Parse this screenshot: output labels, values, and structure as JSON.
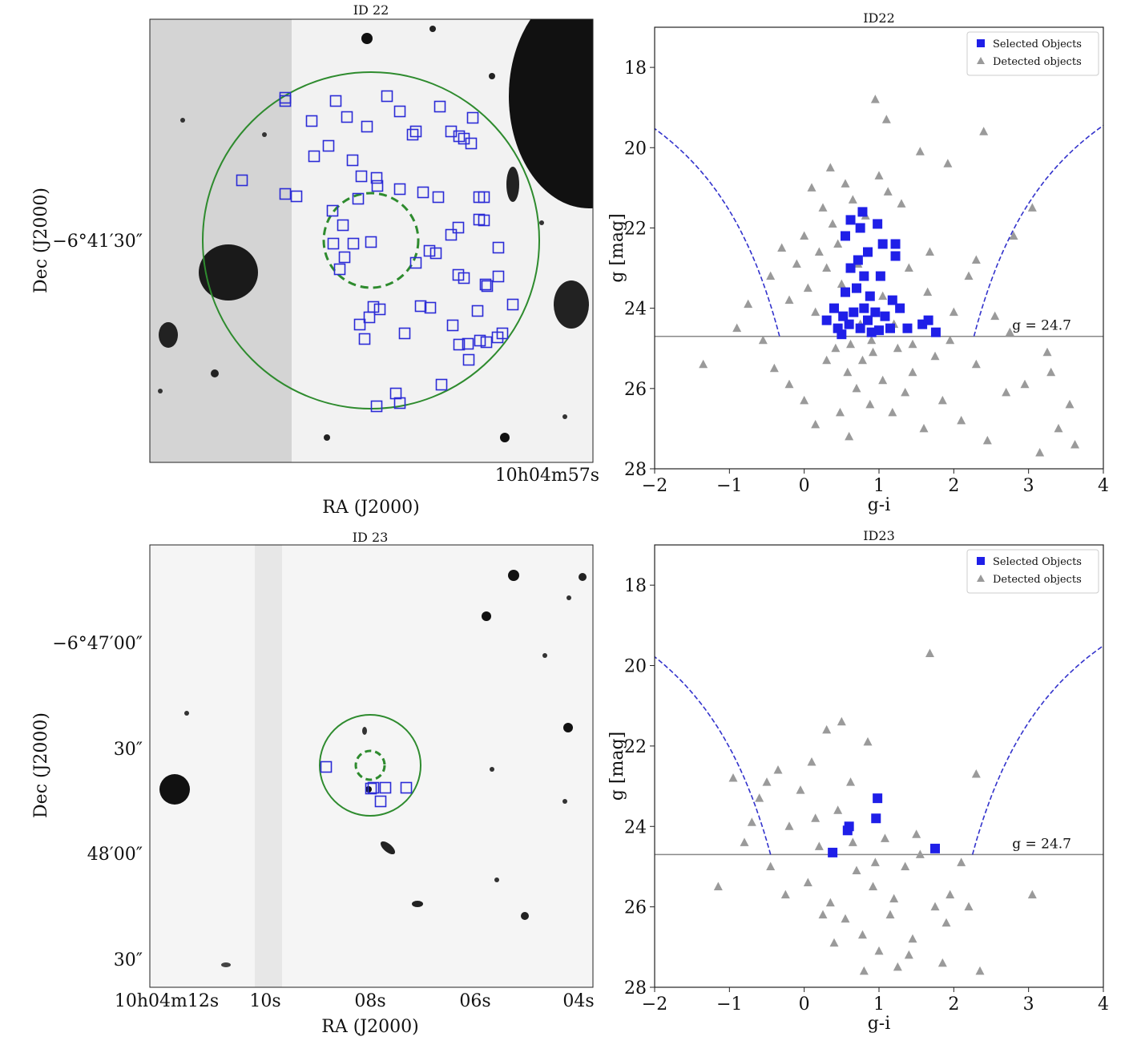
{
  "colors": {
    "selected": "#1f1fe8",
    "detected": "#9a9a9a",
    "ring": "#2e8b2e",
    "box": "#2b2bd6",
    "axis": "#222222",
    "cut": "#888888",
    "curve": "#3333cc"
  },
  "images": [
    {
      "title": "ID 22",
      "xlabel": "RA (J2000)",
      "ylabel": "Dec (J2000)",
      "x_ticklabels": [
        "10h04m57s"
      ],
      "y_ticklabels": [
        "−6°41′30″"
      ],
      "background": "#f2f2f2",
      "mask_shade": "#d4d4d4"
    },
    {
      "title": "ID 23",
      "xlabel": "RA (J2000)",
      "ylabel": "Dec (J2000)",
      "x_ticklabels": [
        "10h04m12s",
        "10s",
        "08s",
        "06s",
        "04s"
      ],
      "y_ticklabels": [
        "−6°47′00″",
        "30″",
        "48′00″",
        "30″"
      ],
      "background": "#f5f5f5",
      "mask_shade": "#e7e7e7"
    }
  ],
  "chart_data": [
    {
      "type": "scatter",
      "title": "ID22",
      "xlabel": "g-i",
      "ylabel": "g [mag]",
      "xlim": [
        -2,
        4
      ],
      "ylim": [
        28,
        17
      ],
      "xticks": [
        -2,
        -1,
        0,
        1,
        2,
        3,
        4
      ],
      "yticks": [
        18,
        20,
        22,
        24,
        26,
        28
      ],
      "legend": [
        "Selected Objects",
        "Detected objects"
      ],
      "legend_position": "top-right",
      "cut_label": "g = 24.7",
      "mag_cut": 24.7,
      "curve_center": 0.97,
      "curve_halfwidth_at_cut": 1.3,
      "series": [
        {
          "name": "Selected Objects",
          "marker": "square",
          "points": [
            [
              0.62,
              21.8
            ],
            [
              0.78,
              21.6
            ],
            [
              0.98,
              21.9
            ],
            [
              0.55,
              22.2
            ],
            [
              0.75,
              22.0
            ],
            [
              1.05,
              22.4
            ],
            [
              1.22,
              22.4
            ],
            [
              1.22,
              22.7
            ],
            [
              0.85,
              22.6
            ],
            [
              0.72,
              22.8
            ],
            [
              0.62,
              23.0
            ],
            [
              0.8,
              23.2
            ],
            [
              1.02,
              23.2
            ],
            [
              0.55,
              23.6
            ],
            [
              0.7,
              23.5
            ],
            [
              0.88,
              23.7
            ],
            [
              1.18,
              23.8
            ],
            [
              0.4,
              24.0
            ],
            [
              0.52,
              24.2
            ],
            [
              0.66,
              24.1
            ],
            [
              0.8,
              24.0
            ],
            [
              0.95,
              24.1
            ],
            [
              1.08,
              24.2
            ],
            [
              1.28,
              24.0
            ],
            [
              0.3,
              24.3
            ],
            [
              0.45,
              24.5
            ],
            [
              0.6,
              24.4
            ],
            [
              0.75,
              24.5
            ],
            [
              0.9,
              24.6
            ],
            [
              1.15,
              24.5
            ],
            [
              1.38,
              24.5
            ],
            [
              1.58,
              24.4
            ],
            [
              1.66,
              24.3
            ],
            [
              1.76,
              24.6
            ],
            [
              0.5,
              24.65
            ],
            [
              0.85,
              24.3
            ],
            [
              1.0,
              24.55
            ]
          ]
        },
        {
          "name": "Detected objects",
          "marker": "triangle",
          "points": [
            [
              -1.35,
              25.4
            ],
            [
              -0.75,
              23.9
            ],
            [
              -0.45,
              23.2
            ],
            [
              -0.3,
              22.5
            ],
            [
              -0.2,
              23.8
            ],
            [
              -0.1,
              22.9
            ],
            [
              0.0,
              22.2
            ],
            [
              0.05,
              23.5
            ],
            [
              0.1,
              21.0
            ],
            [
              0.15,
              24.1
            ],
            [
              0.2,
              22.6
            ],
            [
              0.25,
              21.5
            ],
            [
              0.3,
              23.0
            ],
            [
              0.35,
              20.5
            ],
            [
              0.38,
              21.9
            ],
            [
              0.42,
              25.0
            ],
            [
              0.45,
              22.4
            ],
            [
              0.5,
              23.4
            ],
            [
              0.55,
              20.9
            ],
            [
              0.58,
              25.6
            ],
            [
              0.62,
              24.9
            ],
            [
              0.65,
              21.3
            ],
            [
              0.7,
              26.0
            ],
            [
              0.72,
              22.9
            ],
            [
              0.78,
              25.3
            ],
            [
              0.82,
              21.7
            ],
            [
              0.88,
              26.4
            ],
            [
              0.92,
              25.1
            ],
            [
              0.95,
              18.8
            ],
            [
              1.0,
              20.7
            ],
            [
              1.05,
              25.8
            ],
            [
              1.1,
              19.3
            ],
            [
              1.12,
              21.1
            ],
            [
              1.18,
              26.6
            ],
            [
              1.25,
              25.0
            ],
            [
              1.3,
              21.4
            ],
            [
              1.35,
              26.1
            ],
            [
              1.4,
              23.0
            ],
            [
              1.45,
              25.6
            ],
            [
              1.55,
              20.1
            ],
            [
              1.6,
              27.0
            ],
            [
              1.68,
              22.6
            ],
            [
              1.75,
              25.2
            ],
            [
              1.85,
              26.3
            ],
            [
              1.92,
              20.4
            ],
            [
              2.0,
              24.1
            ],
            [
              2.1,
              26.8
            ],
            [
              2.2,
              23.2
            ],
            [
              2.3,
              25.4
            ],
            [
              2.45,
              27.3
            ],
            [
              2.55,
              24.2
            ],
            [
              2.7,
              26.1
            ],
            [
              2.8,
              22.2
            ],
            [
              2.95,
              25.9
            ],
            [
              3.05,
              21.5
            ],
            [
              3.15,
              27.6
            ],
            [
              3.25,
              25.1
            ],
            [
              3.4,
              27.0
            ],
            [
              3.55,
              26.4
            ],
            [
              3.62,
              27.4
            ],
            [
              -0.9,
              24.5
            ],
            [
              -0.55,
              24.8
            ],
            [
              -0.4,
              25.5
            ],
            [
              -0.2,
              25.9
            ],
            [
              0.0,
              26.3
            ],
            [
              0.15,
              26.9
            ],
            [
              0.3,
              25.3
            ],
            [
              0.48,
              26.6
            ],
            [
              0.6,
              27.2
            ],
            [
              0.75,
              24.4
            ],
            [
              0.9,
              24.8
            ],
            [
              1.05,
              23.7
            ],
            [
              1.2,
              24.4
            ],
            [
              1.45,
              24.9
            ],
            [
              1.65,
              23.6
            ],
            [
              1.95,
              24.8
            ],
            [
              2.3,
              22.8
            ],
            [
              2.75,
              24.6
            ],
            [
              3.3,
              25.6
            ],
            [
              2.4,
              19.6
            ]
          ]
        }
      ]
    },
    {
      "type": "scatter",
      "title": "ID23",
      "xlabel": "g-i",
      "ylabel": "g [mag]",
      "xlim": [
        -2,
        4
      ],
      "ylim": [
        28,
        17
      ],
      "xticks": [
        -2,
        -1,
        0,
        1,
        2,
        3,
        4
      ],
      "yticks": [
        18,
        20,
        22,
        24,
        26,
        28
      ],
      "legend": [
        "Selected Objects",
        "Detected objects"
      ],
      "legend_position": "top-right",
      "cut_label": "g = 24.7",
      "mag_cut": 24.7,
      "curve_center": 0.9,
      "curve_halfwidth_at_cut": 1.35,
      "series": [
        {
          "name": "Selected Objects",
          "marker": "square",
          "points": [
            [
              0.98,
              23.3
            ],
            [
              0.96,
              23.8
            ],
            [
              0.6,
              24.0
            ],
            [
              0.58,
              24.1
            ],
            [
              0.38,
              24.65
            ],
            [
              1.75,
              24.55
            ]
          ]
        },
        {
          "name": "Detected objects",
          "marker": "triangle",
          "points": [
            [
              -1.15,
              25.5
            ],
            [
              -0.95,
              22.8
            ],
            [
              -0.8,
              24.4
            ],
            [
              -0.6,
              23.3
            ],
            [
              -0.45,
              25.0
            ],
            [
              -0.35,
              22.6
            ],
            [
              -0.2,
              24.0
            ],
            [
              -0.05,
              23.1
            ],
            [
              0.05,
              25.4
            ],
            [
              0.1,
              22.4
            ],
            [
              0.2,
              24.5
            ],
            [
              0.3,
              21.6
            ],
            [
              0.35,
              25.9
            ],
            [
              0.45,
              23.6
            ],
            [
              0.5,
              21.4
            ],
            [
              0.55,
              26.3
            ],
            [
              0.62,
              22.9
            ],
            [
              0.7,
              25.1
            ],
            [
              0.78,
              26.7
            ],
            [
              0.85,
              21.9
            ],
            [
              0.92,
              25.5
            ],
            [
              1.0,
              27.1
            ],
            [
              1.08,
              24.3
            ],
            [
              1.15,
              26.2
            ],
            [
              1.25,
              27.5
            ],
            [
              1.35,
              25.0
            ],
            [
              1.45,
              26.8
            ],
            [
              1.55,
              24.7
            ],
            [
              1.68,
              19.7
            ],
            [
              1.75,
              26.0
            ],
            [
              1.85,
              27.4
            ],
            [
              1.95,
              25.7
            ],
            [
              2.1,
              24.9
            ],
            [
              2.3,
              22.7
            ],
            [
              2.35,
              27.6
            ],
            [
              3.05,
              25.7
            ],
            [
              -0.7,
              23.9
            ],
            [
              -0.25,
              25.7
            ],
            [
              0.15,
              23.8
            ],
            [
              0.4,
              26.9
            ],
            [
              0.65,
              24.4
            ],
            [
              0.8,
              27.6
            ],
            [
              1.2,
              25.8
            ],
            [
              1.5,
              24.2
            ],
            [
              1.9,
              26.4
            ],
            [
              2.2,
              26.0
            ],
            [
              -0.5,
              22.9
            ],
            [
              0.25,
              26.2
            ],
            [
              0.95,
              24.9
            ],
            [
              1.4,
              27.2
            ]
          ]
        }
      ]
    }
  ]
}
